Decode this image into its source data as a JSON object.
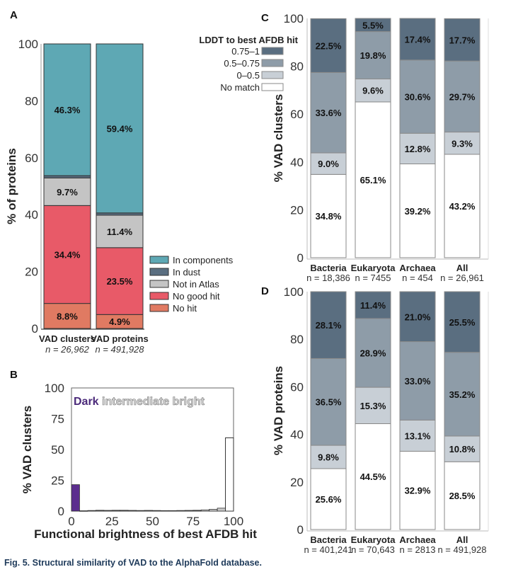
{
  "caption": {
    "prefix": "Fig. 5.",
    "text": "Structural similarity of VAD to the AlphaFold database."
  },
  "chart_data": [
    {
      "panel": "A",
      "type": "bar",
      "stacked": true,
      "ylabel": "% of proteins",
      "ylim": [
        0,
        100
      ],
      "yticks": [
        0,
        20,
        40,
        60,
        80,
        100
      ],
      "categories": [
        "VAD clusters",
        "VAD proteins"
      ],
      "n_labels": [
        "n = 26,962",
        "n = 491,928"
      ],
      "legend_placement": "right",
      "series": [
        {
          "name": "No hit",
          "color": "#e07a62",
          "values": [
            8.8,
            4.9
          ],
          "labels": [
            "8.8%",
            "4.9%"
          ]
        },
        {
          "name": "No good hit",
          "color": "#e85a68",
          "values": [
            34.4,
            23.5
          ],
          "labels": [
            "34.4%",
            "23.5%"
          ]
        },
        {
          "name": "Not in Atlas",
          "color": "#c4c4c4",
          "values": [
            9.7,
            11.4
          ],
          "labels": [
            "9.7%",
            "11.4%"
          ]
        },
        {
          "name": "In dust",
          "color": "#5a6e80",
          "values": [
            0.8,
            0.8
          ],
          "labels": [
            "",
            ""
          ]
        },
        {
          "name": "In components",
          "color": "#5ea8b4",
          "values": [
            46.3,
            59.4
          ],
          "labels": [
            "46.3%",
            "59.4%"
          ]
        }
      ],
      "legend_order": [
        "In components",
        "In dust",
        "Not in Atlas",
        "No good hit",
        "No hit"
      ]
    },
    {
      "panel": "B",
      "type": "bar",
      "subtype": "histogram",
      "xlabel": "Functional brightness of best AFDB hit",
      "ylabel": "% VAD clusters",
      "xlim": [
        0,
        100
      ],
      "ylim": [
        0,
        100
      ],
      "xticks": [
        0,
        25,
        50,
        75,
        100
      ],
      "yticks": [
        0,
        25,
        50,
        75,
        100
      ],
      "bin_width": 5,
      "bin_starts": [
        0,
        5,
        10,
        15,
        20,
        25,
        30,
        35,
        40,
        45,
        50,
        55,
        60,
        65,
        70,
        75,
        80,
        85,
        90,
        95
      ],
      "values": [
        21.5,
        0.3,
        0.5,
        0.7,
        0.6,
        0.7,
        0.7,
        0.6,
        0.5,
        0.6,
        0.5,
        0.4,
        0.4,
        0.5,
        0.6,
        0.7,
        1.0,
        1.5,
        2.4,
        3.8
      ],
      "last_bin_value": 59.5,
      "annotations": [
        {
          "text": "Dark",
          "color": "#4b2a7a"
        },
        {
          "text": "intermediate",
          "color": "#9a9a9a"
        },
        {
          "text": "bright",
          "color": "#b8b8b8"
        }
      ],
      "dark_color": "#5b2d8e"
    },
    {
      "panel": "C",
      "type": "bar",
      "stacked": true,
      "ylabel": "% VAD clusters",
      "ylim": [
        0,
        100
      ],
      "yticks": [
        0,
        20,
        40,
        60,
        80,
        100
      ],
      "categories": [
        "Bacteria",
        "Eukaryota",
        "Archaea",
        "All"
      ],
      "n_labels": [
        "n = 18,386",
        "n = 7455",
        "n = 454",
        "n = 26,961"
      ],
      "legend_title": "LDDT to best AFDB hit",
      "legend_placement": "left",
      "series": [
        {
          "name": "No match",
          "color": "#ffffff",
          "values": [
            34.8,
            65.1,
            39.2,
            43.2
          ],
          "labels": [
            "34.8%",
            "65.1%",
            "39.2%",
            "43.2%"
          ]
        },
        {
          "name": "0–0.5",
          "color": "#c8cfd6",
          "values": [
            9.0,
            9.6,
            12.8,
            9.3
          ],
          "labels": [
            "9.0%",
            "9.6%",
            "12.8%",
            "9.3%"
          ]
        },
        {
          "name": "0.5–0.75",
          "color": "#8e9ca8",
          "values": [
            33.6,
            19.8,
            30.6,
            29.7
          ],
          "labels": [
            "33.6%",
            "19.8%",
            "30.6%",
            "29.7%"
          ]
        },
        {
          "name": "0.75–1",
          "color": "#5a6e80",
          "values": [
            22.5,
            5.5,
            17.4,
            17.7
          ],
          "labels": [
            "22.5%",
            "5.5%",
            "17.4%",
            "17.7%"
          ]
        }
      ],
      "legend_order": [
        "0.75–1",
        "0.5–0.75",
        "0–0.5",
        "No match"
      ]
    },
    {
      "panel": "D",
      "type": "bar",
      "stacked": true,
      "ylabel": "% VAD proteins",
      "ylim": [
        0,
        100
      ],
      "yticks": [
        0,
        20,
        40,
        60,
        80,
        100
      ],
      "categories": [
        "Bacteria",
        "Eukaryota",
        "Archaea",
        "All"
      ],
      "n_labels": [
        "n = 401,241",
        "n = 70,643",
        "n = 2813",
        "n = 491,928"
      ],
      "series": [
        {
          "name": "No match",
          "color": "#ffffff",
          "values": [
            25.6,
            44.5,
            32.9,
            28.5
          ],
          "labels": [
            "25.6%",
            "44.5%",
            "32.9%",
            "28.5%"
          ]
        },
        {
          "name": "0–0.5",
          "color": "#c8cfd6",
          "values": [
            9.8,
            15.3,
            13.1,
            10.8
          ],
          "labels": [
            "9.8%",
            "15.3%",
            "13.1%",
            "10.8%"
          ]
        },
        {
          "name": "0.5–0.75",
          "color": "#8e9ca8",
          "values": [
            36.5,
            28.9,
            33.0,
            35.2
          ],
          "labels": [
            "36.5%",
            "28.9%",
            "33.0%",
            "35.2%"
          ]
        },
        {
          "name": "0.75–1",
          "color": "#5a6e80",
          "values": [
            28.1,
            11.4,
            21.0,
            25.5
          ],
          "labels": [
            "28.1%",
            "11.4%",
            "21.0%",
            "25.5%"
          ]
        }
      ]
    }
  ]
}
